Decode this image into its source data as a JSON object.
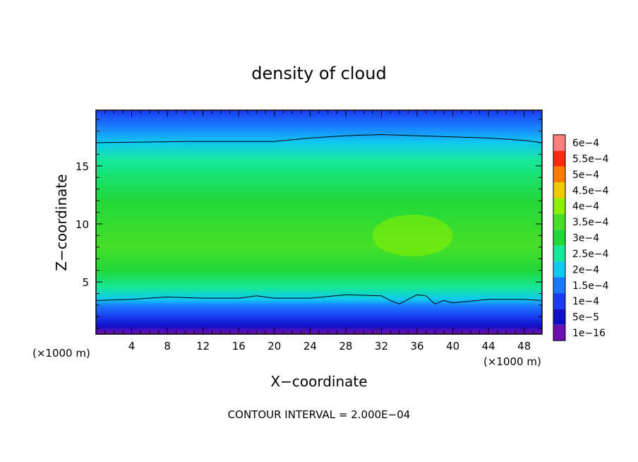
{
  "chart_data": {
    "type": "heatmap",
    "title": "density of cloud",
    "xlabel": "X−coordinate",
    "ylabel": "Z−coordinate",
    "x_unit_left": "(×1000 m)",
    "x_unit_right": "(×1000 m)",
    "footer": "CONTOUR INTERVAL = 2.000E−04",
    "xlim": [
      0,
      50
    ],
    "ylim": [
      0.5,
      19.8
    ],
    "x_ticks": [
      4,
      8,
      12,
      16,
      20,
      24,
      28,
      32,
      36,
      40,
      44,
      48
    ],
    "x_tick_labels": [
      "4",
      "8",
      "12",
      "16",
      "20",
      "24",
      "28",
      "32",
      "36",
      "40",
      "44",
      "48"
    ],
    "y_ticks": [
      5,
      10,
      15
    ],
    "y_tick_labels": [
      "5",
      "10",
      "15"
    ],
    "colorbar": {
      "levels": [
        "1e−16",
        "5e−5",
        "1e−4",
        "1.5e−4",
        "2e−4",
        "2.5e−4",
        "3e−4",
        "3.5e−4",
        "4e−4",
        "4.5e−4",
        "5e−4",
        "5.5e−4",
        "6e−4"
      ],
      "colors": [
        "#6a0fb0",
        "#1010c8",
        "#1a3cf0",
        "#1a78ff",
        "#10c8f0",
        "#14e89a",
        "#20d838",
        "#46e028",
        "#8cf000",
        "#f0c800",
        "#ff7a00",
        "#ff2a10",
        "#ff7f7f"
      ]
    },
    "contour_lines": [
      {
        "level": "2e−4 (upper)",
        "x": [
          0,
          10,
          20,
          24,
          28,
          32,
          36,
          40,
          44,
          48,
          50
        ],
        "z": [
          17.0,
          17.1,
          17.1,
          17.4,
          17.6,
          17.7,
          17.6,
          17.5,
          17.4,
          17.2,
          17.0
        ]
      },
      {
        "level": "2e−4 (lower)",
        "x": [
          0,
          4,
          8,
          12,
          16,
          18,
          20,
          24,
          28,
          32,
          33,
          34,
          35,
          36,
          37,
          38,
          39,
          40,
          44,
          48,
          50
        ],
        "z": [
          3.4,
          3.5,
          3.7,
          3.6,
          3.6,
          3.8,
          3.6,
          3.6,
          3.9,
          3.8,
          3.4,
          3.1,
          3.5,
          3.9,
          3.8,
          3.1,
          3.4,
          3.2,
          3.5,
          3.5,
          3.4
        ]
      }
    ],
    "field_profile": [
      {
        "z": 0.6,
        "value_band": 0
      },
      {
        "z": 1.2,
        "value_band": 1
      },
      {
        "z": 2.0,
        "value_band": 2
      },
      {
        "z": 2.9,
        "value_band": 3
      },
      {
        "z": 3.5,
        "value_band": 4
      },
      {
        "z": 4.5,
        "value_band": 5
      },
      {
        "z": 6.0,
        "value_band": 6
      },
      {
        "z": 8.0,
        "value_band": 7
      },
      {
        "z": 12.0,
        "value_band": 6
      },
      {
        "z": 15.5,
        "value_band": 5
      },
      {
        "z": 17.0,
        "value_band": 4
      },
      {
        "z": 18.5,
        "value_band": 3
      },
      {
        "z": 19.8,
        "value_band": 2
      }
    ],
    "maximum_region": {
      "x": [
        31,
        40
      ],
      "z": [
        7.2,
        10.8
      ],
      "value_band": 8
    },
    "grid": false,
    "legend_position": "right"
  }
}
